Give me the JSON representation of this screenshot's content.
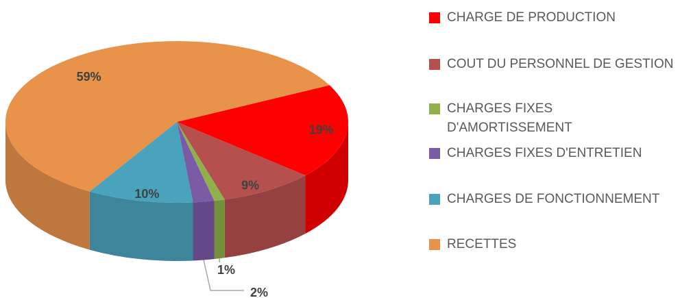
{
  "chart_data": {
    "type": "pie3d",
    "categories": [
      "CHARGE DE PRODUCTION",
      "COUT DU PERSONNEL DE GESTION",
      "CHARGES FIXES D'AMORTISSEMENT",
      "CHARGES FIXES D'ENTRETIEN",
      "CHARGES DE FONCTIONNEMENT",
      "RECETTES"
    ],
    "values": [
      19,
      9,
      1,
      2,
      10,
      59
    ],
    "value_labels": [
      "19%",
      "9%",
      "1%",
      "2%",
      "10%",
      "59%"
    ],
    "colors": [
      "#ff0000",
      "#b5504f",
      "#8fb04b",
      "#7b5aa6",
      "#4aa3bc",
      "#e8924a"
    ],
    "legend": "right"
  }
}
